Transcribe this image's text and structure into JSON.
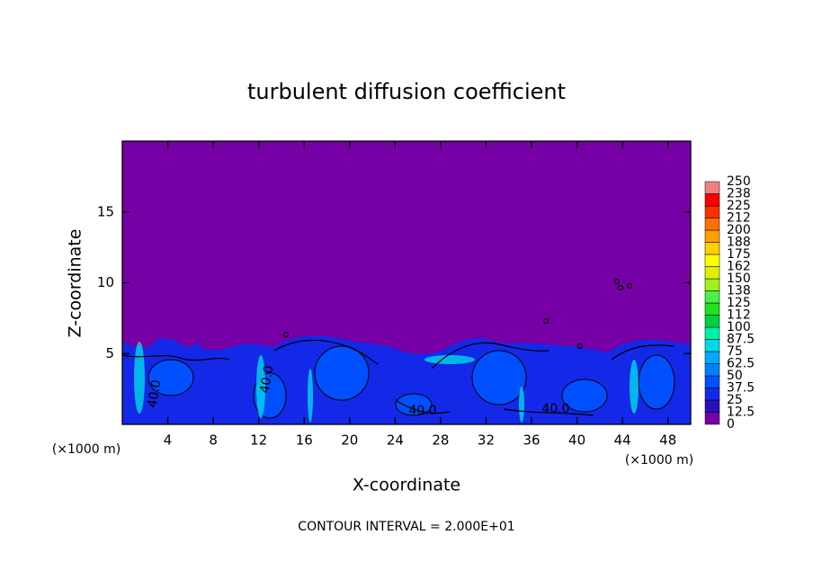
{
  "chart_data": {
    "type": "contour",
    "title": "turbulent diffusion coefficient",
    "x_label": "X-coordinate",
    "y_label": "Z-coordinate",
    "x_unit": "(×1000 m)",
    "y_unit": "(×1000 m)",
    "footer": "CONTOUR INTERVAL = 2.000E+01",
    "xlim": [
      0,
      50
    ],
    "ylim": [
      0,
      20
    ],
    "xticks": [
      4,
      8,
      12,
      16,
      20,
      24,
      28,
      32,
      36,
      40,
      44,
      48
    ],
    "yticks": [
      5,
      10,
      15
    ],
    "contour_labels": [
      "40.0",
      "40.0",
      "40.0",
      "40.0"
    ],
    "colorbar": {
      "levels": [
        0,
        12.5,
        25,
        37.5,
        50,
        62.5,
        75,
        87.5,
        100,
        112,
        125,
        138,
        150,
        162,
        175,
        188,
        200,
        212,
        225,
        238,
        250
      ],
      "colors": [
        "#7600a6",
        "#2a10b8",
        "#1428e8",
        "#0050ff",
        "#0080ff",
        "#00a8ff",
        "#00d8e8",
        "#00f0a8",
        "#00d040",
        "#20e020",
        "#48f048",
        "#a0f020",
        "#e0f000",
        "#ffff00",
        "#ffd000",
        "#ffa000",
        "#ff7000",
        "#ff3000",
        "#ff0000",
        "#f08080"
      ]
    }
  }
}
